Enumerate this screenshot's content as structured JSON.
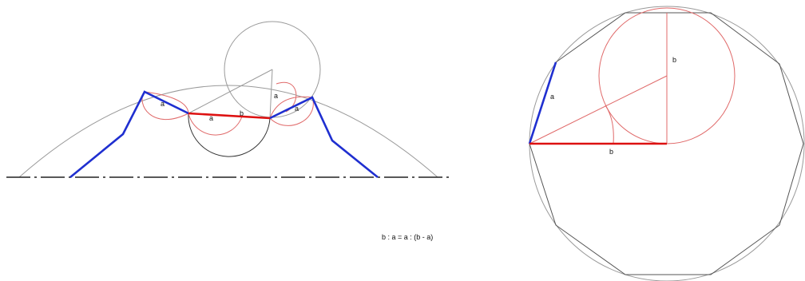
{
  "left_figure": {
    "label_a_1": "a",
    "label_a_2": "a",
    "label_a_3": "a",
    "label_a_4": "a",
    "label_b": "b"
  },
  "right_figure": {
    "label_a": "a",
    "label_b_horizontal": "b",
    "label_b_vertical": "b"
  },
  "formula": "b : a = a : (b - a)",
  "colors": {
    "blue": "#1f2fd0",
    "red": "#dd1111",
    "light_red": "#e06a6a",
    "gray": "#9a9a9a",
    "dark": "#222222"
  }
}
